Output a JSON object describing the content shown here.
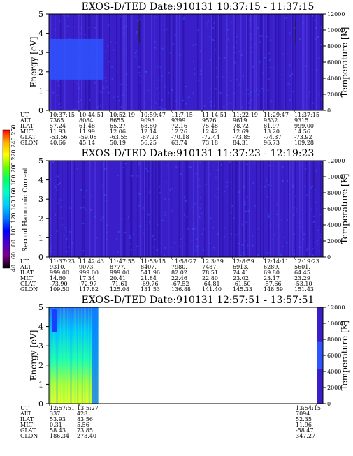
{
  "colors": {
    "background": "#3a1fc9",
    "stripe_dark": "#2a10a8",
    "stripe_light": "#4d36e0",
    "cloud": "#2f55ff",
    "empty": "#ffffff",
    "colorbar": [
      "#000000",
      "#7a008a",
      "#4b00c8",
      "#0000ff",
      "#0077ff",
      "#00c8ff",
      "#00ffc8",
      "#00ff66",
      "#66ff00",
      "#ffff00",
      "#ffb000",
      "#ff0000"
    ]
  },
  "colorbar": {
    "label": "Second Harmonic Current",
    "ticks": [
      "40",
      "60",
      "80",
      "100",
      "120",
      "140",
      "160",
      "180",
      "200",
      "220",
      "240",
      "250"
    ]
  },
  "chart_data": [
    {
      "type": "heatmap",
      "title": "EXOS-D/TED   Date:910131   10:37:15 - 11:37:15",
      "ylabel": "Energy [eV]",
      "ylabel_right": "Temperature [K]",
      "ylim": [
        0,
        5
      ],
      "yticks": [
        "0",
        "1",
        "2",
        "3",
        "4",
        "5"
      ],
      "ylim_right": [
        0,
        12000
      ],
      "yticks_right": [
        "0",
        "2000",
        "4000",
        "6000",
        "8000",
        "10000",
        "12000"
      ],
      "data_extent": [
        0,
        1
      ],
      "dense_region": {
        "t_end": 0.2,
        "e_min": 1.6,
        "e_max": 3.7
      },
      "spikes": [
        0.33,
        0.9
      ],
      "orbit_labels": [
        "UT",
        "ALT",
        "ILAT",
        "MLT",
        "GLAT",
        "GLON"
      ],
      "orbit_columns": [
        [
          "10:37:15",
          "7365.",
          "57.24",
          "11.93",
          "-53.56",
          "40.66"
        ],
        [
          "10:44:51",
          "8084.",
          "61.48",
          "11.99",
          "-59.08",
          "45.14"
        ],
        [
          "10:52:19",
          "8655.",
          "65.27",
          "12.06",
          "-63.55",
          "50.19"
        ],
        [
          "10:59:47",
          "9093.",
          "68.80",
          "12.14",
          "-67.23",
          "56.25"
        ],
        [
          "11:7:15",
          "9399.",
          "72.16",
          "12.26",
          "-70.18",
          "63.74"
        ],
        [
          "11:14:51",
          "9576.",
          "75.48",
          "12.42",
          "-72.44",
          "73.18"
        ],
        [
          "11:22:19",
          "9619.",
          "78.72",
          "12.69",
          "-73.85",
          "84.31"
        ],
        [
          "11:29:47",
          "9532.",
          "81.97",
          "13.20",
          "-74.37",
          "96.73"
        ],
        [
          "11:37:15",
          "9315.",
          "999.00",
          "14.56",
          "-73.92",
          "109.28"
        ]
      ]
    },
    {
      "type": "heatmap",
      "title": "EXOS-D/TED   Date:910131   11:37:23 - 12:19:23",
      "ylabel": "",
      "ylabel_right": "Temperature [K]",
      "ylim": [
        0,
        5
      ],
      "yticks": [
        "0",
        "1",
        "2",
        "3",
        "4",
        "5"
      ],
      "ylim_right": [
        0,
        12000
      ],
      "yticks_right": [
        "0",
        "2000",
        "4000",
        "6000",
        "8000",
        "10000",
        "12000"
      ],
      "data_extent": [
        0,
        1
      ],
      "dense_region": null,
      "spikes": [
        0.97
      ],
      "orbit_labels": [
        "UT",
        "ALT",
        "ILAT",
        "MLT",
        "GLAT",
        "GLON"
      ],
      "orbit_columns": [
        [
          "11:37:23",
          "9310.",
          "999.00",
          "14.60",
          "-73.90",
          "109.50"
        ],
        [
          "11:42:43",
          "9073.",
          "999.00",
          "17.34",
          "-72.97",
          "117.82"
        ],
        [
          "11:47:55",
          "8777.",
          "999.00",
          "20.41",
          "-71.61",
          "125.08"
        ],
        [
          "11:53:15",
          "8407.",
          "541.96",
          "21.84",
          "-69.76",
          "131.53"
        ],
        [
          "11:58:27",
          "7980.",
          "82.02",
          "22.46",
          "-67.52",
          "136.88"
        ],
        [
          "12:3:39",
          "7487.",
          "78.51",
          "22.80",
          "-64.81",
          "141.40"
        ],
        [
          "12:8:59",
          "6913.",
          "74.41",
          "23.02",
          "-61.50",
          "145.33"
        ],
        [
          "12:14:11",
          "6289.",
          "69.80",
          "23.17",
          "-57.66",
          "148.59"
        ],
        [
          "12:19:23",
          "5601.",
          "64.45",
          "23.29",
          "-53.10",
          "151.43"
        ]
      ]
    },
    {
      "type": "heatmap",
      "title": "EXOS-D/TED   Date:910131   12:57:51 - 13:57:51",
      "ylabel": "Energy [eV]",
      "ylabel_right": "Temperature [K]",
      "ylim": [
        0,
        5
      ],
      "yticks": [
        "0",
        "1",
        "2",
        "3",
        "4",
        "5"
      ],
      "ylim_right": [
        0,
        12000
      ],
      "yticks_right": [
        "0",
        "2000",
        "4000",
        "6000",
        "8000",
        "10000",
        "12000"
      ],
      "data_extent": [
        0,
        0.18
      ],
      "dense_region": null,
      "spikes": [],
      "orbit_labels": [
        "UT",
        "ALT",
        "ILAT",
        "MLT",
        "GLAT",
        "GLON"
      ],
      "orbit_columns": [
        [
          "12:57:51",
          "337.",
          "53.93",
          "0.31",
          "58.43",
          "186.34"
        ],
        [
          "13:5:27",
          "428.",
          "83.56",
          "5.56",
          "73.85",
          "273.40"
        ],
        [
          "13:54:15",
          "7094.",
          "52.35",
          "11.96",
          "-58.47",
          "347.27"
        ]
      ]
    }
  ]
}
